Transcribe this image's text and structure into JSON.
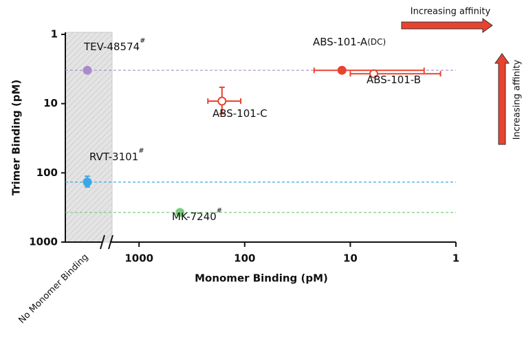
{
  "chart_data": {
    "type": "scatter",
    "x_label": "Monomer Binding (pM)",
    "y_label": "Trimer Binding (pM)",
    "no_x_region_label": "No Monomer Binding",
    "xlim": [
      1800,
      1
    ],
    "ylim": [
      1,
      1000
    ],
    "x_log": true,
    "y_log": true,
    "xticks": [
      1000,
      100,
      10,
      1
    ],
    "yticks": [
      1,
      10,
      100,
      1000
    ],
    "annotations": {
      "x_direction": "Increasing affinity",
      "y_direction": "Increasing affinity"
    },
    "points": [
      {
        "label": "TEV-48574",
        "superscript": "#",
        "x": null,
        "y": 3.3,
        "color": "#a98ccc",
        "filled": true,
        "reference_line": true
      },
      {
        "label": "ABS-101-A",
        "suffix": "(DC)",
        "x": 12,
        "y": 3.3,
        "xerr": [
          22,
          2
        ],
        "color": "#e8432f",
        "filled": true
      },
      {
        "label": "ABS-101-B",
        "x": 6,
        "y": 3.7,
        "xerr": [
          10,
          1.4
        ],
        "color": "#e8432f",
        "filled": false
      },
      {
        "label": "ABS-101-C",
        "x": 164,
        "y": 9.2,
        "xerr": [
          223,
          109
        ],
        "yerr": [
          5.8,
          14
        ],
        "color": "#e8432f",
        "filled": false
      },
      {
        "label": "RVT-3101",
        "superscript": "#",
        "x": null,
        "y": 136,
        "yerr": [
          112,
          160
        ],
        "color": "#3ba7e8",
        "filled": true,
        "reference_line": true
      },
      {
        "label": "MK-7240",
        "superscript": "#",
        "x": 410,
        "y": 373,
        "yerr": [
          345,
          400
        ],
        "color": "#7ccc7e",
        "filled": true,
        "reference_line": true
      }
    ]
  }
}
